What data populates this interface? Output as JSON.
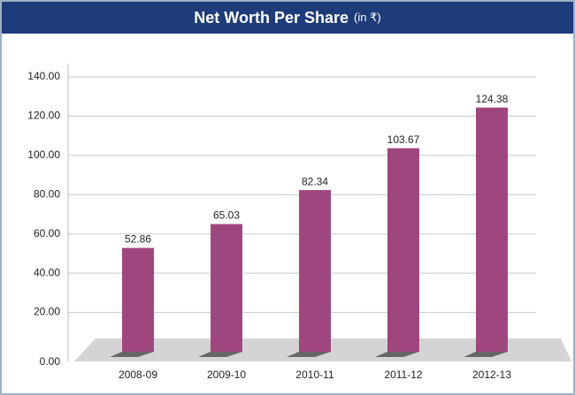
{
  "chart_data": {
    "type": "bar",
    "title": "Net Worth Per Share",
    "subtitle": "(in ₹)",
    "categories": [
      "2008-09",
      "2009-10",
      "2010-11",
      "2011-12",
      "2012-13"
    ],
    "values": [
      52.86,
      65.03,
      82.34,
      103.67,
      124.38
    ],
    "color": "#a0467f",
    "ylim": [
      0,
      140
    ],
    "yticks": [
      {
        "value": 0,
        "label": "0.00"
      },
      {
        "value": 20,
        "label": "20.00"
      },
      {
        "value": 40,
        "label": "40.00"
      },
      {
        "value": 60,
        "label": "60.00"
      },
      {
        "value": 80,
        "label": "80.00"
      },
      {
        "value": 100,
        "label": "100.00"
      },
      {
        "value": 120,
        "label": "120.00"
      },
      {
        "value": 140,
        "label": "140.00"
      }
    ],
    "grid": true
  }
}
